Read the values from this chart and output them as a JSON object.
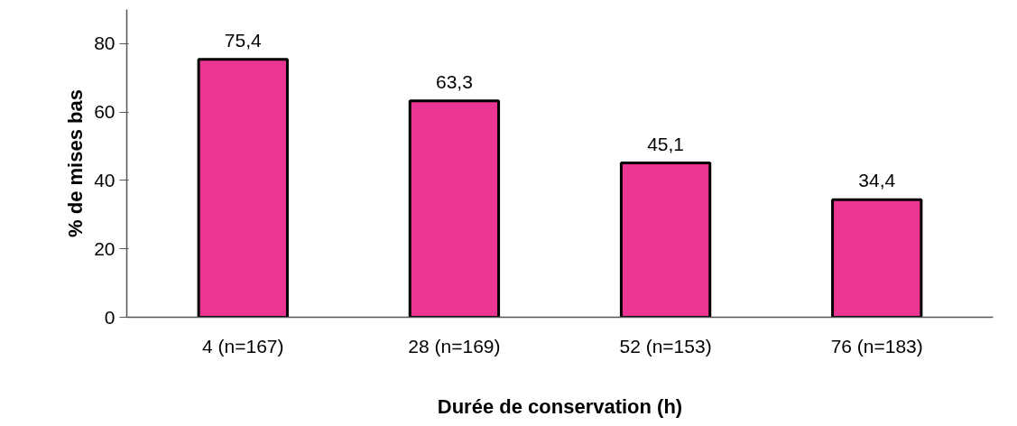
{
  "chart_data": {
    "type": "bar",
    "xlabel": "Durée de conservation (h)",
    "ylabel": "% de mises bas",
    "categories": [
      "4 (n=167)",
      "28 (n=169)",
      "52 (n=153)",
      "76 (n=183)"
    ],
    "values": [
      75.4,
      63.3,
      45.1,
      34.4
    ],
    "value_labels": [
      "75,4",
      "63,3",
      "45,1",
      "34,4"
    ],
    "color": "#ec3592",
    "ylim": [
      0,
      90
    ],
    "yticks": [
      0,
      20,
      40,
      60,
      80
    ],
    "grid": false
  }
}
